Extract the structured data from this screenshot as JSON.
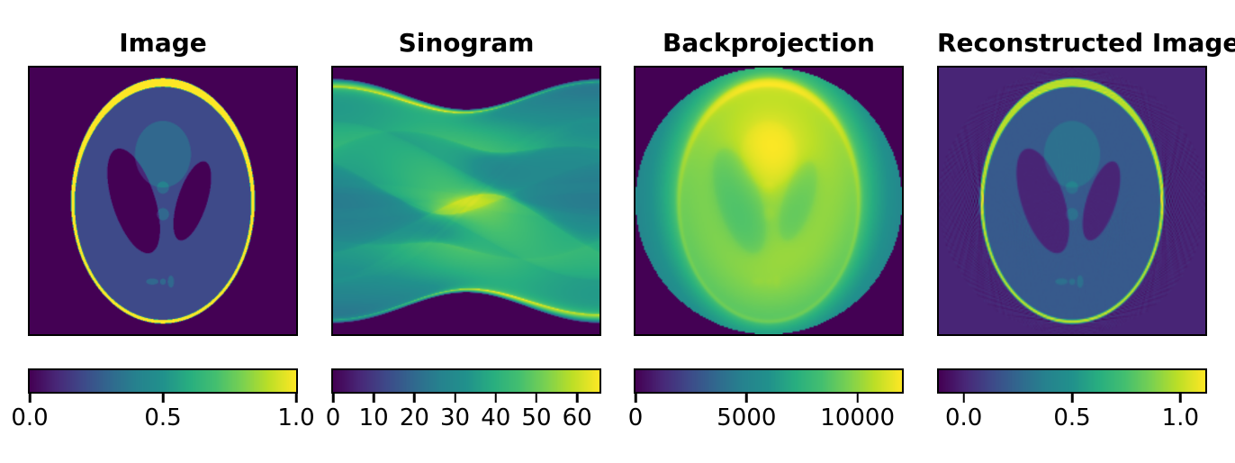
{
  "figure": {
    "background_color": "#ffffff",
    "text_color": "#000000",
    "panels": [
      {
        "title": "Image",
        "colorbar": {
          "vmin": 0.0,
          "vmax": 1.0,
          "tick_values": [
            0.0,
            0.5,
            1.0
          ],
          "tick_labels": [
            "0.0",
            "0.5",
            "1.0"
          ]
        }
      },
      {
        "title": "Sinogram",
        "colorbar": {
          "vmin": 0.0,
          "vmax": 65.5,
          "tick_values": [
            0,
            10,
            20,
            30,
            40,
            50,
            60
          ],
          "tick_labels": [
            "0",
            "10",
            "20",
            "30",
            "40",
            "50",
            "60"
          ]
        }
      },
      {
        "title": "Backprojection",
        "colorbar": {
          "vmin": 0,
          "vmax": 12000,
          "tick_values": [
            0,
            5000,
            10000
          ],
          "tick_labels": [
            "0",
            "5000",
            "10000"
          ]
        }
      },
      {
        "title": "Reconstructed Image",
        "colorbar": {
          "vmin": -0.115,
          "vmax": 1.115,
          "tick_values": [
            0.0,
            0.5,
            1.0
          ],
          "tick_labels": [
            "0.0",
            "0.5",
            "1.0"
          ]
        }
      }
    ]
  },
  "chart_data": {
    "type": "heatmap",
    "layout": "four square image panels in a row, horizontal viridis colorbar under each",
    "panels": [
      {
        "name": "Image",
        "content": "Shepp-Logan phantom (modified, contrast-enhanced)",
        "value_range": [
          0,
          1
        ]
      },
      {
        "name": "Sinogram",
        "content": "Radon transform of the phantom",
        "theta_range_deg": [
          0,
          180
        ],
        "t_range": [
          -1,
          1
        ],
        "value_range": [
          0,
          65.5
        ]
      },
      {
        "name": "Backprojection",
        "content": "Unfiltered backprojection of the sinogram, zero outside the reconstruction circle",
        "value_range": [
          0,
          12000
        ]
      },
      {
        "name": "Reconstructed Image",
        "content": "Filtered backprojection (ramp / Ram-Lak filter) reconstruction",
        "value_range": [
          -0.115,
          1.115
        ]
      }
    ],
    "colormap": {
      "name": "viridis",
      "stops": [
        [
          0.0,
          "#440154"
        ],
        [
          0.1,
          "#482878"
        ],
        [
          0.2,
          "#3e4a89"
        ],
        [
          0.3,
          "#31688e"
        ],
        [
          0.4,
          "#26828e"
        ],
        [
          0.5,
          "#21918c"
        ],
        [
          0.6,
          "#28ae80"
        ],
        [
          0.7,
          "#44bf70"
        ],
        [
          0.8,
          "#7ad151"
        ],
        [
          0.9,
          "#bddf26"
        ],
        [
          1.0,
          "#fde725"
        ]
      ]
    },
    "phantom_ellipses": [
      {
        "value": 1.0,
        "a": 0.69,
        "b": 0.92,
        "x0": 0.0,
        "y0": 0.0,
        "phi_deg": 0
      },
      {
        "value": -0.8,
        "a": 0.6624,
        "b": 0.874,
        "x0": 0.0,
        "y0": -0.0184,
        "phi_deg": 0
      },
      {
        "value": -0.2,
        "a": 0.11,
        "b": 0.31,
        "x0": 0.22,
        "y0": 0.0,
        "phi_deg": -18
      },
      {
        "value": -0.2,
        "a": 0.16,
        "b": 0.41,
        "x0": -0.22,
        "y0": 0.0,
        "phi_deg": 18
      },
      {
        "value": 0.1,
        "a": 0.21,
        "b": 0.25,
        "x0": 0.0,
        "y0": 0.35,
        "phi_deg": 0
      },
      {
        "value": 0.1,
        "a": 0.046,
        "b": 0.046,
        "x0": 0.0,
        "y0": 0.1,
        "phi_deg": 0
      },
      {
        "value": 0.1,
        "a": 0.046,
        "b": 0.046,
        "x0": 0.0,
        "y0": -0.1,
        "phi_deg": 0
      },
      {
        "value": 0.1,
        "a": 0.046,
        "b": 0.023,
        "x0": -0.08,
        "y0": -0.605,
        "phi_deg": 0
      },
      {
        "value": 0.1,
        "a": 0.023,
        "b": 0.023,
        "x0": 0.0,
        "y0": -0.606,
        "phi_deg": 0
      },
      {
        "value": 0.1,
        "a": 0.023,
        "b": 0.046,
        "x0": 0.06,
        "y0": -0.605,
        "phi_deg": 0
      }
    ],
    "projection_count": 240
  }
}
